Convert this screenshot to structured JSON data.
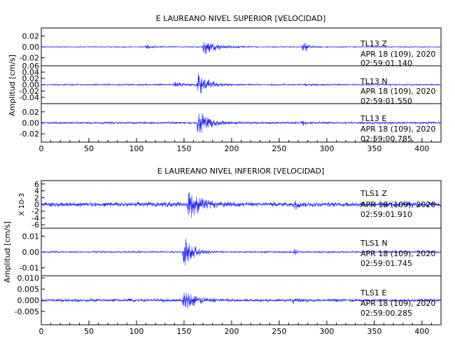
{
  "chart_data": [
    {
      "type": "line",
      "title": "E LAUREANO NIVEL SUPERIOR [VELOCIDAD]",
      "ylabel": "Amplitud [cm/s]",
      "xlim": [
        0,
        420
      ],
      "xticks": [
        "0",
        "50",
        "100",
        "150",
        "200",
        "250",
        "300",
        "350",
        "400"
      ],
      "series_color": "#1c1cff",
      "panels": [
        {
          "channel": "TL13 Z",
          "date": "APR 18 (109), 2020",
          "time": "02:59:01.140",
          "ylim": [
            -0.035,
            0.035
          ],
          "yticks": [
            "0.02",
            "0.00",
            "-0.02"
          ],
          "noise": 0.0011,
          "bursts": [
            {
              "t": 110,
              "amp": 0.005,
              "w": 6
            },
            {
              "t": 170,
              "amp": 0.017,
              "w": 14
            },
            {
              "t": 275,
              "amp": 0.015,
              "w": 4
            }
          ]
        },
        {
          "channel": "TL13 N",
          "date": "APR 18 (109), 2020",
          "time": "02:59:01.550",
          "ylim": [
            -0.06,
            0.06
          ],
          "yticks": [
            "0.06",
            "0.04",
            "0.02",
            "0.00",
            "-0.02",
            "-0.04"
          ],
          "noise": 0.0028,
          "bursts": [
            {
              "t": 140,
              "amp": 0.012,
              "w": 7
            },
            {
              "t": 165,
              "amp": 0.048,
              "w": 10
            },
            {
              "t": 278,
              "amp": 0.006,
              "w": 3
            }
          ]
        },
        {
          "channel": "TL13 E",
          "date": "APR 18 (109), 2020",
          "time": "02:59:00.785",
          "ylim": [
            -0.035,
            0.035
          ],
          "yticks": [
            "0.02",
            "0.00",
            "-0.02"
          ],
          "noise": 0.0022,
          "bursts": [
            {
              "t": 165,
              "amp": 0.028,
              "w": 12
            },
            {
              "t": 275,
              "amp": 0.005,
              "w": 4
            }
          ]
        }
      ]
    },
    {
      "type": "line",
      "title": "E LAUREANO NIVEL INFERIOR [VELOCIDAD]",
      "ylabel": "Amplitud [cm/s]",
      "xlim": [
        0,
        420
      ],
      "xticks": [
        "0",
        "50",
        "100",
        "150",
        "200",
        "250",
        "300",
        "350",
        "400"
      ],
      "series_color": "#1c1cff",
      "panels": [
        {
          "channel": "TLS1 Z",
          "date": "APR 18 (109), 2020",
          "time": "02:59:01.910",
          "ylim": [
            -7,
            7
          ],
          "yticks": [
            "6",
            "4",
            "2",
            "0",
            "-2",
            "-4",
            "-6"
          ],
          "scale_label": "X 10-3",
          "noise": 0.8,
          "bursts": [
            {
              "t": 155,
              "amp": 4.5,
              "w": 12
            },
            {
              "t": 265,
              "amp": 1.8,
              "w": 4
            }
          ]
        },
        {
          "channel": "TLS1 N",
          "date": "APR 18 (109), 2020",
          "time": "02:59:01.745",
          "ylim": [
            -0.015,
            0.015
          ],
          "yticks": [
            "0.01",
            "0.00",
            "-0.01"
          ],
          "noise": 0.0006,
          "bursts": [
            {
              "t": 150,
              "amp": 0.012,
              "w": 9
            },
            {
              "t": 265,
              "amp": 0.0025,
              "w": 3
            }
          ]
        },
        {
          "channel": "TLS1 E",
          "date": "APR 18 (109), 2020",
          "time": "02:59:00.285",
          "ylim": [
            -0.011,
            0.011
          ],
          "yticks": [
            "0.010",
            "0.005",
            "0.000",
            "-0.005"
          ],
          "noise": 0.0008,
          "bursts": [
            {
              "t": 150,
              "amp": 0.0075,
              "w": 10
            },
            {
              "t": 265,
              "amp": 0.0015,
              "w": 4
            }
          ]
        }
      ]
    }
  ]
}
